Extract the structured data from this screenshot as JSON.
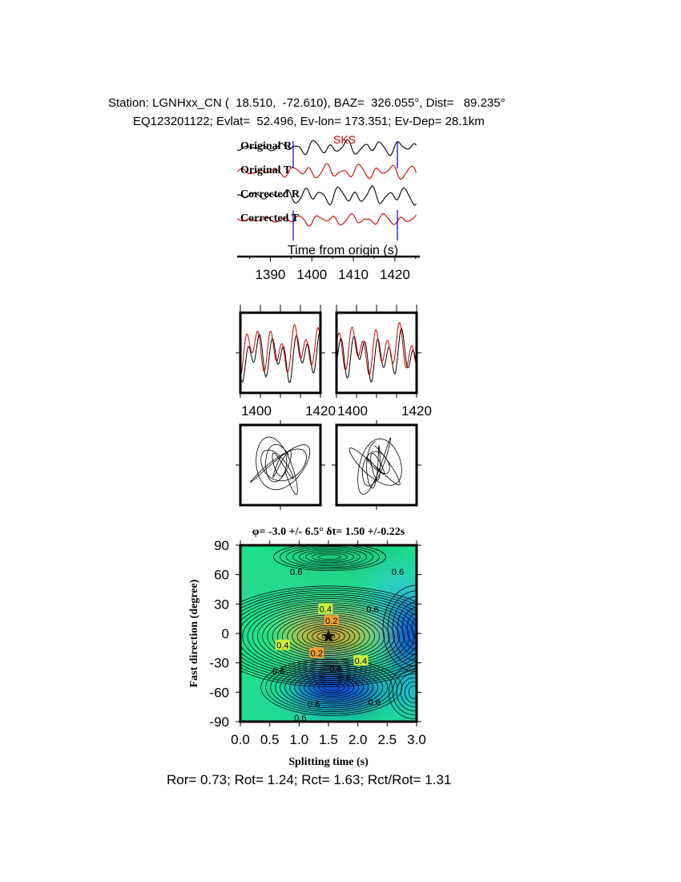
{
  "header": {
    "station_line": "Station: LGNHxx_CN (  18.510,  -72.610), BAZ=  326.055°, Dist=   89.235°",
    "event_line": "EQ123201122; Evlat=  52.496, Ev-lon= 173.351; Ev-Dep= 28.1km"
  },
  "footer": {
    "ratio_line": "Ror= 0.73; Rot= 1.24; Rct= 1.63; Rct/Rot= 1.31"
  },
  "colors": {
    "radial": "#000000",
    "transverse": "#cc0000",
    "phase_label": "#cc0000",
    "marker": "#0000cc"
  },
  "chart_data": [
    {
      "type": "line",
      "panel": "seismograms",
      "phase_label": "SKS",
      "xlabel": "Time from origin (s)",
      "xlim": [
        1382,
        1426
      ],
      "xticks": [
        1390,
        1400,
        1410,
        1420
      ],
      "window_markers_s": [
        1395.5,
        1420.6
      ],
      "series": [
        {
          "name": "Original R",
          "color": "#000000"
        },
        {
          "name": "Original T",
          "color": "#cc0000"
        },
        {
          "name": "Corrected R",
          "color": "#000000"
        },
        {
          "name": "Corrected T",
          "color": "#cc0000"
        }
      ]
    },
    {
      "type": "line",
      "panel": "fast-slow-waveforms",
      "xlim": [
        1398,
        1422
      ],
      "xticks_left": [
        "1400",
        "1420"
      ],
      "xticks_right": [
        "1400",
        "1420"
      ]
    },
    {
      "type": "scatter",
      "panel": "particle-motion"
    },
    {
      "type": "heatmap",
      "panel": "energy-grid",
      "title": "φ= -3.0 +/- 6.5° δt= 1.50 +/-0.22s",
      "xlabel": "Splitting time (s)",
      "ylabel": "Fast direction (degree)",
      "xlim": [
        0,
        3
      ],
      "ylim": [
        -90,
        90
      ],
      "xticks": [
        "0.0",
        "0.5",
        "1.0",
        "1.5",
        "2.0",
        "2.5",
        "3.0"
      ],
      "yticks": [
        "90",
        "60",
        "30",
        "0",
        "-30",
        "-60",
        "-90"
      ],
      "best_fit": {
        "phi": -3.0,
        "dt": 1.5
      },
      "contour_labels": [
        {
          "text": "0.6",
          "x": 0.95,
          "y": 63
        },
        {
          "text": "0.6",
          "x": 2.68,
          "y": 63
        },
        {
          "text": "0.6",
          "x": 2.25,
          "y": 25
        },
        {
          "text": "0.4",
          "x": 1.45,
          "y": 25
        },
        {
          "text": "0.2",
          "x": 1.55,
          "y": 13
        },
        {
          "text": "0.4",
          "x": 0.72,
          "y": -12
        },
        {
          "text": "0.2",
          "x": 1.3,
          "y": -20
        },
        {
          "text": "0.4",
          "x": 2.05,
          "y": -28
        },
        {
          "text": "0.6",
          "x": 0.65,
          "y": -38
        },
        {
          "text": "0.6",
          "x": 1.62,
          "y": -36
        },
        {
          "text": "0.6",
          "x": 1.78,
          "y": -45
        },
        {
          "text": "0.6",
          "x": 1.25,
          "y": -72
        },
        {
          "text": "0.6",
          "x": 2.28,
          "y": -70
        },
        {
          "text": "0.6",
          "x": 1.02,
          "y": -86
        }
      ]
    }
  ]
}
